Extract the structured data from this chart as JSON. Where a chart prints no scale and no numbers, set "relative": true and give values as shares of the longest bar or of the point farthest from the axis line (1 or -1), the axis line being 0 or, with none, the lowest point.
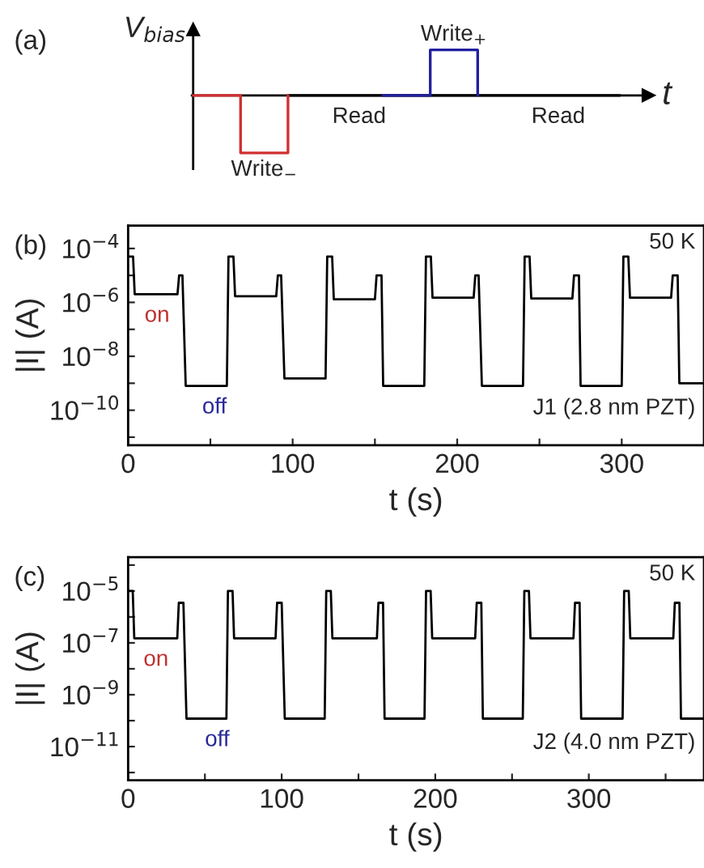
{
  "chart_data": [
    {
      "type": "step",
      "title": "(a)",
      "xlabel": "t",
      "ylabel": "V$_{bias}$",
      "relative": true,
      "categories": [
        null,
        null,
        null,
        null,
        null,
        null,
        null,
        null,
        null,
        null
      ],
      "series": [
        {
          "color": "#000000",
          "values": [
            null,
            null,
            0,
            0,
            0,
            0,
            0,
            0,
            0,
            0
          ]
        },
        {
          "color": "#d03030",
          "values": [
            0,
            -1,
            0,
            null,
            null,
            null,
            null,
            null,
            null,
            null
          ]
        },
        {
          "color": "#2020a0",
          "values": [
            null,
            null,
            null,
            null,
            0,
            0.79,
            0,
            null,
            null,
            null
          ]
        }
      ],
      "annotations": [
        "Write$_{−}$",
        "Read",
        "Write$_{+}$",
        "Read"
      ]
    },
    {
      "type": "line",
      "title": "(b)",
      "xlabel": "t (s)",
      "ylabel": "|I| (A)",
      "log": "y",
      "xlim": [
        0,
        350
      ],
      "ylim": [
        5e-12,
        0.0007
      ],
      "xticks": [
        0,
        100,
        200,
        300,
        {
          "value": 50,
          "label": null
        },
        {
          "value": 150,
          "label": null
        },
        {
          "value": 250,
          "label": null
        }
      ],
      "yticks": [
        {
          "value": 0.0001,
          "label": "10$^{−4}$"
        },
        {
          "value": 1e-06,
          "label": "10$^{−6}$"
        },
        {
          "value": 1e-08,
          "label": "10$^{−8}$"
        },
        {
          "value": 1e-10,
          "label": "10$^{−10}$"
        },
        {
          "value": 1e-05,
          "label": null
        },
        {
          "value": 1e-07,
          "label": null
        },
        {
          "value": 1e-09,
          "label": null
        },
        {
          "value": 1e-11,
          "label": null
        }
      ],
      "series": [
        {
          "color": "#000000",
          "x": [
            0,
            3,
            4,
            30,
            31,
            33,
            35,
            60,
            61,
            64,
            65,
            90,
            91,
            93,
            95,
            120,
            121,
            124,
            125,
            150,
            151,
            154,
            155,
            180,
            181,
            184,
            185,
            210,
            211,
            213,
            215,
            240,
            241,
            244,
            245,
            270,
            271,
            274,
            275,
            300,
            301,
            304,
            305,
            330,
            331,
            334,
            335,
            350
          ],
          "values": [
            5e-05,
            5e-05,
            2e-06,
            2e-06,
            1e-05,
            1e-05,
            8e-10,
            8e-10,
            5e-05,
            5e-05,
            1.7e-06,
            1.7e-06,
            1e-05,
            1e-05,
            1.5e-09,
            1.5e-09,
            5e-05,
            5e-05,
            1.3e-06,
            1.3e-06,
            1e-05,
            1e-05,
            8e-10,
            8e-10,
            5e-05,
            5e-05,
            1.5e-06,
            1.5e-06,
            1e-05,
            1e-05,
            8e-10,
            8e-10,
            5e-05,
            5e-05,
            1.4e-06,
            1.4e-06,
            1e-05,
            1e-05,
            8e-10,
            8e-10,
            5e-05,
            5e-05,
            1.5e-06,
            1.5e-06,
            1e-05,
            1e-05,
            1e-09,
            1e-09
          ]
        }
      ],
      "annotations": [
        {
          "text": "on",
          "x": 10,
          "y": 2e-06
        },
        {
          "text": "off",
          "x": 45,
          "y": 8e-10
        },
        "50 K",
        "J1 (2.8 nm PZT)"
      ]
    },
    {
      "type": "line",
      "title": "(c)",
      "xlabel": "t (s)",
      "ylabel": "|I| (A)",
      "log": "y",
      "xlim": [
        0,
        375
      ],
      "ylim": [
        5e-13,
        0.0002
      ],
      "xticks": [
        0,
        100,
        200,
        300,
        {
          "value": 50,
          "label": null
        },
        {
          "value": 150,
          "label": null
        },
        {
          "value": 250,
          "label": null
        },
        {
          "value": 350,
          "label": null
        }
      ],
      "yticks": [
        {
          "value": 1e-05,
          "label": "10$^{−5}$"
        },
        {
          "value": 1e-07,
          "label": "10$^{−7}$"
        },
        {
          "value": 1e-09,
          "label": "10$^{−9}$"
        },
        {
          "value": 1e-11,
          "label": "10$^{−11}$"
        },
        {
          "value": 0.0001,
          "label": null
        },
        {
          "value": 1e-06,
          "label": null
        },
        {
          "value": 1e-08,
          "label": null
        },
        {
          "value": 1e-10,
          "label": null
        },
        {
          "value": 1e-12,
          "label": null
        }
      ],
      "series": [
        {
          "color": "#000000",
          "x": [
            0,
            3,
            4,
            32,
            33,
            36,
            38,
            64,
            65,
            68,
            69,
            96,
            97,
            100,
            102,
            128,
            129,
            132,
            133,
            162,
            163,
            166,
            167,
            193,
            194,
            197,
            198,
            226,
            227,
            230,
            231,
            257,
            258,
            261,
            262,
            290,
            291,
            294,
            295,
            322,
            323,
            326,
            327,
            355,
            356,
            359,
            360,
            375
          ],
          "values": [
            1e-05,
            1e-05,
            1.5e-07,
            1.5e-07,
            3.5e-06,
            3.5e-06,
            1.2e-10,
            1.2e-10,
            1e-05,
            1e-05,
            1.5e-07,
            1.5e-07,
            3.5e-06,
            3.5e-06,
            1.2e-10,
            1.2e-10,
            1e-05,
            1e-05,
            1.5e-07,
            1.5e-07,
            3.5e-06,
            3.5e-06,
            1.2e-10,
            1.2e-10,
            1e-05,
            1e-05,
            1.5e-07,
            1.5e-07,
            3.5e-06,
            3.5e-06,
            1.2e-10,
            1.2e-10,
            1e-05,
            1e-05,
            1.5e-07,
            1.5e-07,
            3.5e-06,
            3.5e-06,
            1.2e-10,
            1.2e-10,
            1e-05,
            1e-05,
            1.5e-07,
            1.5e-07,
            3.5e-06,
            3.5e-06,
            1.2e-10,
            1.2e-10
          ]
        }
      ],
      "annotations": [
        {
          "text": "on",
          "x": 10,
          "y": 1.5e-07
        },
        {
          "text": "off",
          "x": 50,
          "y": 1.2e-10
        },
        "50 K",
        "J2 (4.0 nm PZT)"
      ]
    }
  ]
}
